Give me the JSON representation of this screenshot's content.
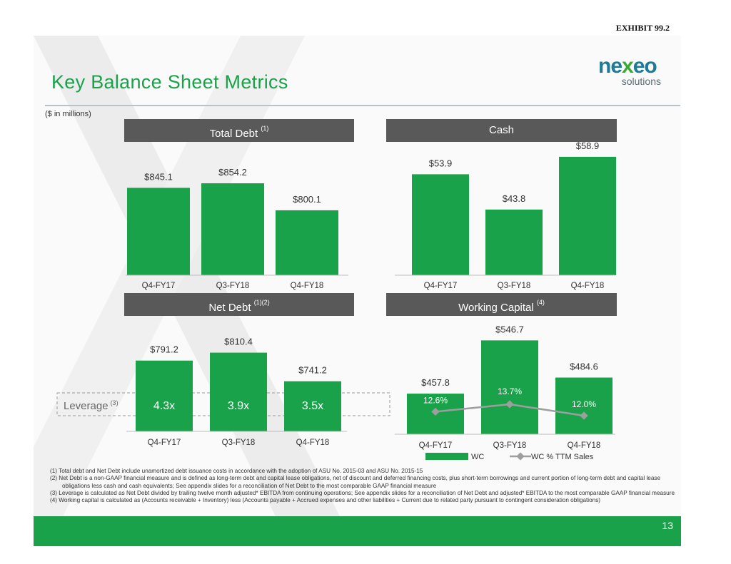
{
  "exhibit": "EXHIBIT 99.2",
  "title": "Key Balance Sheet Metrics",
  "logo": {
    "main_pre": "ne",
    "main_accent": "x",
    "main_post": "eo",
    "sub": "solutions"
  },
  "units": "($ in millions)",
  "panels": {
    "total_debt": {
      "title": "Total Debt",
      "note": "(1)"
    },
    "cash": {
      "title": "Cash",
      "note": ""
    },
    "net_debt": {
      "title": "Net Debt",
      "note": "(1)(2)"
    },
    "working_capital": {
      "title": "Working Capital",
      "note": "(4)"
    }
  },
  "leverage": {
    "label": "Leverage",
    "note": "(3)"
  },
  "chart_data": [
    {
      "type": "bar",
      "id": "total_debt",
      "categories": [
        "Q4-FY17",
        "Q3-FY18",
        "Q4-FY18"
      ],
      "values": [
        845.1,
        854.2,
        800.1
      ],
      "labels": [
        "$845.1",
        "$854.2",
        "$800.1"
      ],
      "color": "#1aa24a"
    },
    {
      "type": "bar",
      "id": "cash",
      "categories": [
        "Q4-FY17",
        "Q3-FY18",
        "Q4-FY18"
      ],
      "values": [
        53.9,
        43.8,
        58.9
      ],
      "labels": [
        "$53.9",
        "$43.8",
        "$58.9"
      ],
      "color": "#1aa24a"
    },
    {
      "type": "bar",
      "id": "net_debt",
      "categories": [
        "Q4-FY17",
        "Q3-FY18",
        "Q4-FY18"
      ],
      "values": [
        791.2,
        810.4,
        741.2
      ],
      "labels": [
        "$791.2",
        "$810.4",
        "$741.2"
      ],
      "leverage": [
        "4.3x",
        "3.9x",
        "3.5x"
      ],
      "color": "#1aa24a"
    },
    {
      "type": "bar",
      "id": "working_capital",
      "categories": [
        "Q4-FY17",
        "Q3-FY18",
        "Q4-FY18"
      ],
      "series": [
        {
          "name": "WC",
          "values": [
            457.8,
            546.7,
            484.6
          ],
          "labels": [
            "$457.8",
            "$546.7",
            "$484.6"
          ],
          "color": "#1aa24a"
        },
        {
          "name": "WC % TTM Sales",
          "values": [
            12.6,
            13.7,
            12.0
          ],
          "labels": [
            "12.6%",
            "13.7%",
            "12.0%"
          ],
          "color": "#9e9e9e"
        }
      ]
    }
  ],
  "footnotes": [
    "(1) Total debt and Net Debt include unamortized debt issuance costs in accordance with the adoption of ASU No. 2015-03 and ASU No. 2015-15",
    "(2) Net Debt is a non-GAAP financial measure and is defined as long-term debt and capital lease obligations, net of discount and deferred financing costs, plus short-term borrowings and current portion of long-term debt and capital lease obligations less cash and cash equivalents; See appendix slides for a reconciliation of Net Debt to the most comparable GAAP financial measure",
    "(3) Leverage is calculated as Net Debt divided by trailing twelve month adjusted* EBITDA from continuing operations; See appendix slides for a reconciliation of Net Debt and adjusted* EBITDA to the most comparable GAAP financial measure",
    "(4) Working capital is calculated as (Accounts receivable + Inventory) less (Accounts payable + Accrued expenses and other liabilities + Current due to related party pursuant to contingent consideration obligations)"
  ],
  "page_number": "13",
  "colors": {
    "green": "#1aa24a",
    "header": "#595959",
    "title": "#1aa24a",
    "line": "#9e9e9e"
  }
}
